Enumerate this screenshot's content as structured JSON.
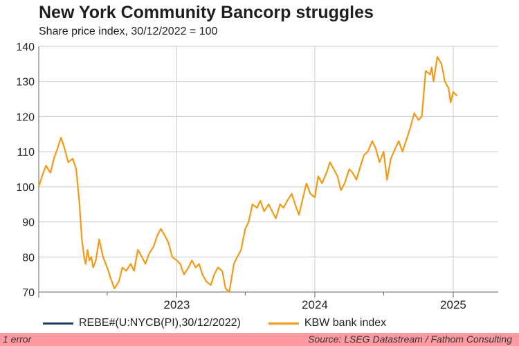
{
  "chart_data": {
    "type": "line",
    "title": "New York Community Bancorp struggles",
    "subtitle": "Share price index, 30/12/2022 = 100",
    "ylim": [
      70,
      140
    ],
    "yticks": [
      70,
      80,
      90,
      100,
      110,
      120,
      130,
      140
    ],
    "xlim": [
      "2022-01-01",
      "2025-04-30"
    ],
    "xtick_labels": [
      {
        "label": "2023",
        "date": "2023-01-01"
      },
      {
        "label": "2024",
        "date": "2024-01-01"
      },
      {
        "label": "2025",
        "date": "2025-01-01"
      }
    ],
    "grid": true,
    "legend_position": "bottom",
    "series": [
      {
        "name": "REBE#(U:NYCB(PI),30/12/2022)",
        "color": "#1f3a6b",
        "x": [],
        "y": []
      },
      {
        "name": "KBW bank index",
        "color": "#f29a16",
        "x": [
          "2022-01-01",
          "2022-01-10",
          "2022-01-20",
          "2022-02-01",
          "2022-02-10",
          "2022-02-20",
          "2022-03-01",
          "2022-03-10",
          "2022-03-20",
          "2022-04-01",
          "2022-04-10",
          "2022-04-18",
          "2022-04-25",
          "2022-05-01",
          "2022-05-05",
          "2022-05-10",
          "2022-05-15",
          "2022-05-20",
          "2022-05-25",
          "2022-06-01",
          "2022-06-10",
          "2022-06-20",
          "2022-07-01",
          "2022-07-10",
          "2022-07-20",
          "2022-08-01",
          "2022-08-10",
          "2022-08-20",
          "2022-09-01",
          "2022-09-10",
          "2022-09-20",
          "2022-10-01",
          "2022-10-10",
          "2022-10-20",
          "2022-11-01",
          "2022-11-10",
          "2022-11-20",
          "2022-12-01",
          "2022-12-10",
          "2022-12-20",
          "2023-01-01",
          "2023-01-10",
          "2023-01-20",
          "2023-02-01",
          "2023-02-10",
          "2023-02-20",
          "2023-03-01",
          "2023-03-10",
          "2023-03-20",
          "2023-04-01",
          "2023-04-10",
          "2023-04-20",
          "2023-05-01",
          "2023-05-10",
          "2023-05-20",
          "2023-06-01",
          "2023-06-10",
          "2023-06-20",
          "2023-07-01",
          "2023-07-10",
          "2023-07-20",
          "2023-08-01",
          "2023-08-10",
          "2023-08-20",
          "2023-09-01",
          "2023-09-10",
          "2023-09-20",
          "2023-10-01",
          "2023-10-10",
          "2023-10-20",
          "2023-11-01",
          "2023-11-10",
          "2023-11-20",
          "2023-12-01",
          "2023-12-10",
          "2023-12-20",
          "2024-01-01",
          "2024-01-10",
          "2024-01-20",
          "2024-02-01",
          "2024-02-10",
          "2024-02-20",
          "2024-03-01",
          "2024-03-10",
          "2024-03-20",
          "2024-04-01",
          "2024-04-10",
          "2024-04-20",
          "2024-05-01",
          "2024-05-10",
          "2024-05-20",
          "2024-06-01",
          "2024-06-10",
          "2024-06-20",
          "2024-07-01",
          "2024-07-10",
          "2024-07-20",
          "2024-08-01",
          "2024-08-10",
          "2024-08-20",
          "2024-09-01",
          "2024-09-10",
          "2024-09-20",
          "2024-10-01",
          "2024-10-10",
          "2024-10-20",
          "2024-11-01",
          "2024-11-05",
          "2024-11-10",
          "2024-11-20",
          "2024-12-01",
          "2024-12-10",
          "2024-12-20",
          "2024-12-25",
          "2025-01-01",
          "2025-01-10"
        ],
        "y": [
          100,
          103,
          106,
          104,
          108,
          111,
          114,
          111,
          107,
          108,
          105,
          96,
          85,
          80,
          78,
          82,
          79,
          80,
          77,
          79,
          85,
          80,
          77,
          74,
          71,
          73,
          77,
          76,
          78,
          76,
          82,
          80,
          78,
          81,
          83,
          86,
          88,
          86,
          84,
          80,
          79,
          78,
          75,
          77,
          79,
          77,
          78,
          75,
          73,
          72,
          75,
          77,
          76,
          71,
          70,
          78,
          80,
          82,
          88,
          90,
          95,
          94,
          96,
          93,
          95,
          93,
          91,
          95,
          94,
          96,
          98,
          95,
          92,
          97,
          101,
          98,
          97,
          103,
          101,
          104,
          107,
          105,
          103,
          99,
          101,
          105,
          104,
          102,
          106,
          109,
          110,
          113,
          111,
          107,
          110,
          102,
          108,
          111,
          113,
          110,
          114,
          117,
          121,
          119,
          120,
          133,
          132,
          134,
          130,
          137,
          135,
          130,
          128,
          124,
          127,
          126
        ]
      }
    ]
  },
  "legend": {
    "items": [
      "REBE#(U:NYCB(PI),30/12/2022)",
      "KBW bank index"
    ]
  },
  "footer": {
    "error_text": "1 error",
    "source_text": "Source: LSEG Datastream / Fathom Consulting"
  },
  "colors": {
    "grid": "#cccccc",
    "axis": "#666666",
    "footer_bg": "#ff9aa2"
  }
}
